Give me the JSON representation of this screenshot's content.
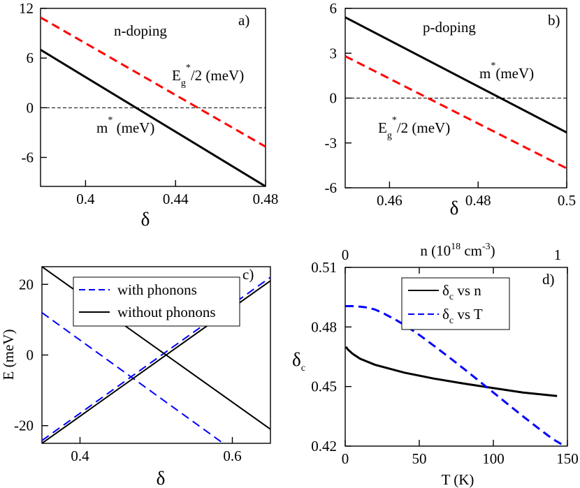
{
  "chart_data": [
    {
      "id": "a",
      "type": "line",
      "panel_label": "a)",
      "title": "n-doping",
      "xlabel": "δ",
      "ylabel": "",
      "xlim": [
        0.38,
        0.48
      ],
      "ylim": [
        -9.5,
        12
      ],
      "x_ticks": [
        0.4,
        0.44,
        0.48
      ],
      "x_tick_labels": [
        "0.4",
        "0.44",
        "0.48"
      ],
      "y_ticks": [
        12,
        6,
        0,
        -6
      ],
      "y_tick_labels": [
        "12",
        "6",
        "0",
        "-6"
      ],
      "zero_line": true,
      "series": [
        {
          "name": "Eg*/2 (meV)",
          "label_main": "E",
          "label_sub": "g",
          "label_sup": "*",
          "label_tail": "/2 (meV)",
          "color": "#ff0000",
          "dash": "dashed",
          "x": [
            0.38,
            0.48
          ],
          "y": [
            10.9,
            -4.7
          ]
        },
        {
          "name": "m* (meV)",
          "label_main": "m",
          "label_sub": "",
          "label_sup": "*",
          "label_tail": " (meV)",
          "color": "#000000",
          "dash": "solid",
          "x": [
            0.38,
            0.48
          ],
          "y": [
            7.0,
            -9.5
          ]
        }
      ]
    },
    {
      "id": "b",
      "type": "line",
      "panel_label": "b)",
      "title": "p-doping",
      "xlabel": "δ",
      "ylabel": "",
      "xlim": [
        0.45,
        0.5
      ],
      "ylim": [
        -6,
        6
      ],
      "x_ticks": [
        0.46,
        0.48,
        0.5
      ],
      "x_tick_labels": [
        "0.46",
        "0.48",
        "0.5"
      ],
      "y_ticks": [
        6,
        3,
        0,
        -3,
        -6
      ],
      "y_tick_labels": [
        "6",
        "3",
        "0",
        "-3",
        "-6"
      ],
      "zero_line": true,
      "series": [
        {
          "name": "m* (meV)",
          "label_main": "m",
          "label_sub": "",
          "label_sup": "*",
          "label_tail": "(meV)",
          "color": "#000000",
          "dash": "solid",
          "x": [
            0.45,
            0.5
          ],
          "y": [
            5.4,
            -2.3
          ]
        },
        {
          "name": "Eg*/2 (meV)",
          "label_main": "E",
          "label_sub": "g",
          "label_sup": "*",
          "label_tail": "/2 (meV)",
          "color": "#ff0000",
          "dash": "dashed",
          "x": [
            0.45,
            0.5
          ],
          "y": [
            2.8,
            -4.7
          ]
        }
      ]
    },
    {
      "id": "c",
      "type": "line",
      "panel_label": "c)",
      "title": "",
      "xlabel": "δ",
      "ylabel": "E (meV)",
      "xlim": [
        0.35,
        0.65
      ],
      "ylim": [
        -25,
        25
      ],
      "x_ticks": [
        0.4,
        0.6
      ],
      "x_tick_labels": [
        "0.4",
        "0.6"
      ],
      "y_ticks": [
        20,
        0,
        -20
      ],
      "y_tick_labels": [
        "20",
        "0",
        "-20"
      ],
      "legend": [
        {
          "label": "with phonons",
          "color": "#0000ff",
          "dash": "dashed"
        },
        {
          "label": "without phonons",
          "color": "#000000",
          "dash": "solid"
        }
      ],
      "series": [
        {
          "name": "with phonons (falling)",
          "color": "#0000ff",
          "dash": "dashed",
          "x": [
            0.35,
            0.588
          ],
          "y": [
            12,
            -25
          ]
        },
        {
          "name": "with phonons (rising)",
          "color": "#0000ff",
          "dash": "dashed",
          "x": [
            0.35,
            0.65
          ],
          "y": [
            -24.2,
            22
          ]
        },
        {
          "name": "without phonons (falling)",
          "color": "#000000",
          "dash": "solid",
          "x": [
            0.35,
            0.65
          ],
          "y": [
            25,
            -21
          ]
        },
        {
          "name": "without phonons (rising)",
          "color": "#000000",
          "dash": "solid",
          "x": [
            0.35,
            0.65
          ],
          "y": [
            -25,
            21
          ]
        }
      ]
    },
    {
      "id": "d",
      "type": "line",
      "panel_label": "d)",
      "title": "",
      "xlabel": "T (K)",
      "top_xlabel_main": "n (10",
      "top_xlabel_sup": "18",
      "top_xlabel_mid": " cm",
      "top_xlabel_sup2": "-3",
      "top_xlabel_tail": ")",
      "ylabel_main": "δ",
      "ylabel_sub": "c",
      "xlim": [
        0,
        150
      ],
      "ylim": [
        0.42,
        0.51
      ],
      "x_ticks": [
        0,
        50,
        100,
        150
      ],
      "x_tick_labels": [
        "0",
        "50",
        "100",
        "150"
      ],
      "top_x_ticks": [
        0,
        1
      ],
      "top_x_tick_labels": [
        "0",
        "1"
      ],
      "y_ticks": [
        0.51,
        0.48,
        0.45,
        0.42
      ],
      "y_tick_labels": [
        "0.51",
        "0.48",
        "0.45",
        "0.42"
      ],
      "legend": [
        {
          "main": "δ",
          "sub": "c",
          "tail": " vs n",
          "color": "#000000",
          "dash": "solid"
        },
        {
          "main": "δ",
          "sub": "c",
          "tail": " vs T",
          "color": "#0000ff",
          "dash": "dashed"
        }
      ],
      "series": [
        {
          "name": "δc vs n",
          "color": "#000000",
          "dash": "solid",
          "x": [
            0.5,
            2,
            5,
            10,
            20,
            40,
            60,
            80,
            100,
            120,
            143
          ],
          "y": [
            0.47,
            0.4685,
            0.4665,
            0.464,
            0.461,
            0.457,
            0.454,
            0.4515,
            0.4492,
            0.447,
            0.4452
          ]
        },
        {
          "name": "δc vs T",
          "color": "#0000ff",
          "dash": "dashed",
          "x": [
            0,
            5,
            10,
            15,
            20,
            25,
            30,
            35,
            40,
            50,
            60,
            70,
            80,
            90,
            100,
            110,
            120,
            130,
            140,
            146
          ],
          "y": [
            0.4905,
            0.4905,
            0.4902,
            0.4898,
            0.4888,
            0.4872,
            0.4852,
            0.4832,
            0.481,
            0.476,
            0.4705,
            0.4648,
            0.459,
            0.453,
            0.447,
            0.441,
            0.435,
            0.4292,
            0.4236,
            0.421
          ]
        }
      ]
    }
  ]
}
